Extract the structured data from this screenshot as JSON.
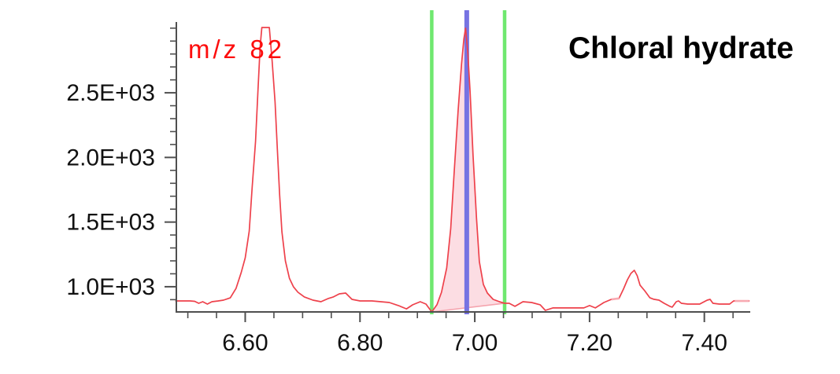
{
  "chart_data": {
    "type": "line",
    "title": "Chloral hydrate",
    "trace_label": "m/z 82",
    "xlabel": "",
    "ylabel": "",
    "xlim": [
      6.48,
      7.48
    ],
    "ylim": [
      805,
      3005
    ],
    "grid": false,
    "legend_position": "none",
    "x_major_ticks": [
      6.6,
      6.8,
      7.0,
      7.2,
      7.4
    ],
    "x_tick_labels": [
      "6.60",
      "6.80",
      "7.00",
      "7.20",
      "7.40"
    ],
    "x_minor_tick_step": 0.05,
    "y_major_ticks": [
      1000,
      1500,
      2000,
      2500
    ],
    "y_tick_labels": [
      "1.0E+03",
      "1.5E+03",
      "2.0E+03",
      "2.5E+03"
    ],
    "y_minor_tick_step": 100,
    "series": [
      {
        "name": "m/z 82",
        "points": [
          [
            6.479,
            890
          ],
          [
            6.504,
            890
          ],
          [
            6.512,
            887
          ],
          [
            6.519,
            872
          ],
          [
            6.526,
            884
          ],
          [
            6.534,
            866
          ],
          [
            6.542,
            884
          ],
          [
            6.553,
            890
          ],
          [
            6.562,
            896
          ],
          [
            6.574,
            914
          ],
          [
            6.584,
            987
          ],
          [
            6.593,
            1110
          ],
          [
            6.6,
            1224
          ],
          [
            6.607,
            1431
          ],
          [
            6.612,
            1759
          ],
          [
            6.618,
            2124
          ],
          [
            6.622,
            2495
          ],
          [
            6.626,
            2854
          ],
          [
            6.629,
            3005
          ],
          [
            6.642,
            3005
          ],
          [
            6.647,
            2744
          ],
          [
            6.652,
            2428
          ],
          [
            6.656,
            2063
          ],
          [
            6.66,
            1711
          ],
          [
            6.664,
            1425
          ],
          [
            6.67,
            1200
          ],
          [
            6.677,
            1066
          ],
          [
            6.684,
            1000
          ],
          [
            6.692,
            957
          ],
          [
            6.703,
            921
          ],
          [
            6.718,
            896
          ],
          [
            6.732,
            884
          ],
          [
            6.744,
            908
          ],
          [
            6.753,
            920
          ],
          [
            6.764,
            945
          ],
          [
            6.775,
            951
          ],
          [
            6.786,
            902
          ],
          [
            6.8,
            890
          ],
          [
            6.821,
            890
          ],
          [
            6.851,
            878
          ],
          [
            6.867,
            854
          ],
          [
            6.881,
            829
          ],
          [
            6.892,
            860
          ],
          [
            6.905,
            884
          ],
          [
            6.915,
            866
          ],
          [
            6.925,
            805
          ],
          [
            6.934,
            860
          ],
          [
            6.942,
            957
          ],
          [
            6.951,
            1145
          ],
          [
            6.958,
            1449
          ],
          [
            6.964,
            1875
          ],
          [
            6.971,
            2361
          ],
          [
            6.977,
            2726
          ],
          [
            6.981,
            2915
          ],
          [
            6.984,
            3000
          ],
          [
            6.988,
            2805
          ],
          [
            6.992,
            2501
          ],
          [
            6.997,
            2015
          ],
          [
            7.003,
            1528
          ],
          [
            7.008,
            1194
          ],
          [
            7.015,
            1018
          ],
          [
            7.022,
            951
          ],
          [
            7.032,
            902
          ],
          [
            7.043,
            884
          ],
          [
            7.052,
            872
          ],
          [
            7.06,
            872
          ],
          [
            7.07,
            848
          ],
          [
            7.084,
            884
          ],
          [
            7.099,
            878
          ],
          [
            7.114,
            860
          ],
          [
            7.123,
            817
          ],
          [
            7.136,
            836
          ],
          [
            7.152,
            836
          ],
          [
            7.173,
            836
          ],
          [
            7.19,
            836
          ],
          [
            7.2,
            854
          ],
          [
            7.21,
            836
          ],
          [
            7.225,
            878
          ],
          [
            7.238,
            902
          ],
          [
            7.251,
            908
          ],
          [
            7.259,
            981
          ],
          [
            7.266,
            1054
          ],
          [
            7.272,
            1103
          ],
          [
            7.278,
            1127
          ],
          [
            7.283,
            1085
          ],
          [
            7.288,
            1012
          ],
          [
            7.296,
            969
          ],
          [
            7.305,
            915
          ],
          [
            7.312,
            903
          ],
          [
            7.321,
            896
          ],
          [
            7.33,
            872
          ],
          [
            7.34,
            848
          ],
          [
            7.344,
            842
          ],
          [
            7.351,
            884
          ],
          [
            7.355,
            890
          ],
          [
            7.36,
            872
          ],
          [
            7.371,
            866
          ],
          [
            7.392,
            866
          ],
          [
            7.405,
            896
          ],
          [
            7.41,
            902
          ],
          [
            7.415,
            872
          ],
          [
            7.426,
            866
          ],
          [
            7.444,
            866
          ],
          [
            7.451,
            890
          ],
          [
            7.478,
            890
          ]
        ]
      }
    ],
    "integrated_peak": {
      "window_start": 6.925,
      "window_end": 7.052,
      "retention_time": 6.986,
      "apex_value": 3000,
      "baseline_start_value": 805,
      "baseline_end_value": 872
    },
    "highlight_segments": [
      [
        [
          7.238,
          902
        ],
        [
          7.252,
          910
        ]
      ],
      [
        [
          7.453,
          890
        ],
        [
          7.478,
          890
        ]
      ]
    ],
    "annotations": {
      "trace_label": "m/z 82",
      "title": "Chloral hydrate"
    },
    "colors": {
      "trace": "#ee414b",
      "peak_fill": "#fcdde3",
      "integration_baseline": "#f5a3ad",
      "window_marker": "#6fe86f",
      "rt_marker": "#7673e2",
      "highlight": "#f8aab2",
      "axis": "#4f4f4f",
      "tick_text": "#111111",
      "trace_label_text": "#fd0d0d",
      "title_text": "#000000"
    }
  }
}
